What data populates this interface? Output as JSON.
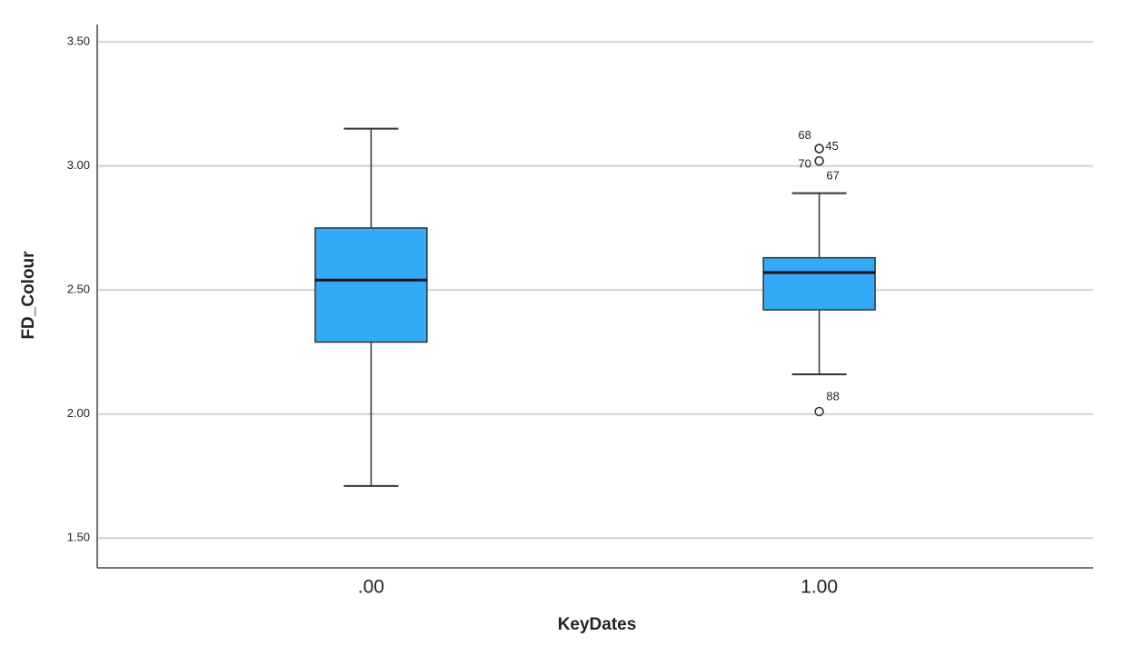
{
  "chart_data": {
    "type": "box",
    "x_label": "KeyDates",
    "y_label": "FD_Colour",
    "categories": [
      ".00",
      "1.00"
    ],
    "color": "#33aaf8",
    "ylim": [
      1.38,
      3.57
    ],
    "yticks": [
      {
        "value": 1.5,
        "label": "1.50"
      },
      {
        "value": 2.0,
        "label": "2.00"
      },
      {
        "value": 2.5,
        "label": "2.50"
      },
      {
        "value": 3.0,
        "label": "3.00"
      },
      {
        "value": 3.5,
        "label": "3.50"
      }
    ],
    "grid": true,
    "boxes": [
      {
        "whisker_low": 1.71,
        "q1": 2.29,
        "median": 2.54,
        "q3": 2.75,
        "whisker_high": 3.15,
        "outliers": []
      },
      {
        "whisker_low": 2.16,
        "q1": 2.42,
        "median": 2.57,
        "q3": 2.63,
        "whisker_high": 2.89,
        "outliers": [
          {
            "label": "68",
            "value": 3.07
          },
          {
            "label": "45",
            "value": 3.07
          },
          {
            "label": "70",
            "value": 3.02
          },
          {
            "label": "67",
            "value": 3.02
          },
          {
            "label": "88",
            "value": 2.01
          }
        ]
      }
    ]
  }
}
